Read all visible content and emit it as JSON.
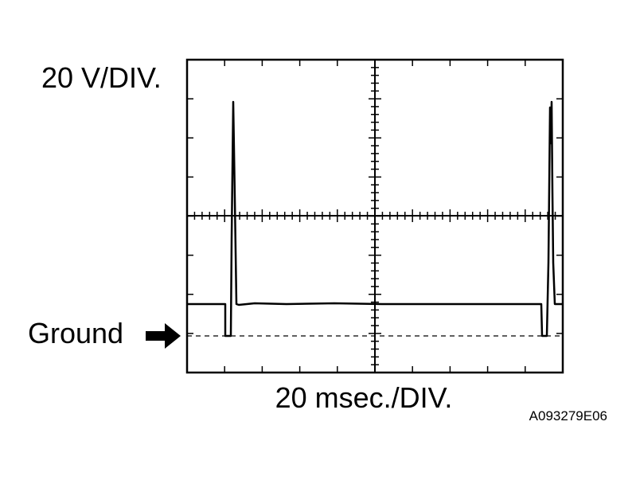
{
  "vertical_scale": "20 V/DIV.",
  "ground_label": "Ground",
  "horizontal_scale": "20 msec./DIV.",
  "figure_id": "A093279E06"
}
